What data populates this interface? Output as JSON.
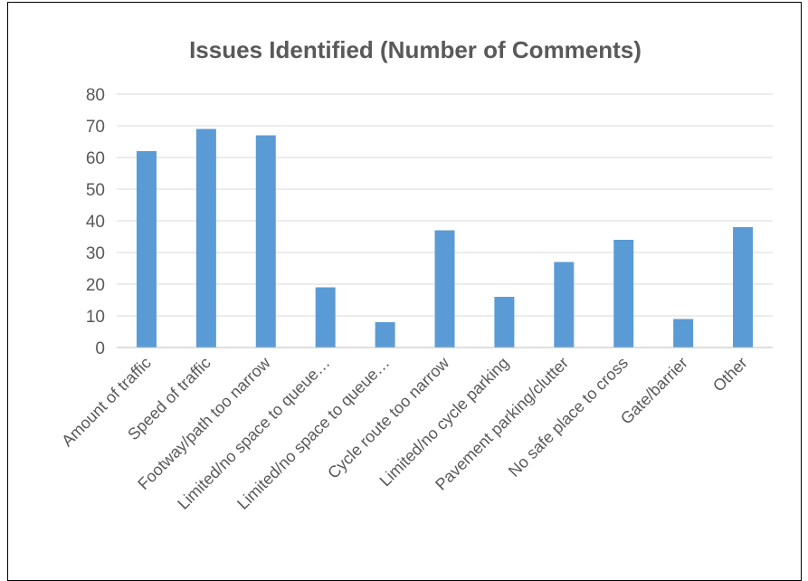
{
  "chart_data": {
    "type": "bar",
    "title": "Issues Identified (Number of Comments)",
    "xlabel": "",
    "ylabel": "",
    "ylim": [
      0,
      80
    ],
    "yticks": [
      "0",
      "10",
      "20",
      "30",
      "40",
      "50",
      "60",
      "70",
      "80"
    ],
    "grid": true,
    "legend": "none",
    "bar_color": "#5b9bd5",
    "categories": [
      "Amount of traffic",
      "Speed of traffic",
      "Footway/path too narrow",
      "Limited/no space to queue…",
      "Limited/no space to queue…",
      "Cycle route too narrow",
      "Limited/no cycle parking",
      "Pavement parking/clutter",
      "No safe place to cross",
      "Gate/barrier",
      "Other"
    ],
    "values": [
      62,
      69,
      67,
      19,
      8,
      37,
      16,
      27,
      34,
      9,
      38
    ]
  }
}
